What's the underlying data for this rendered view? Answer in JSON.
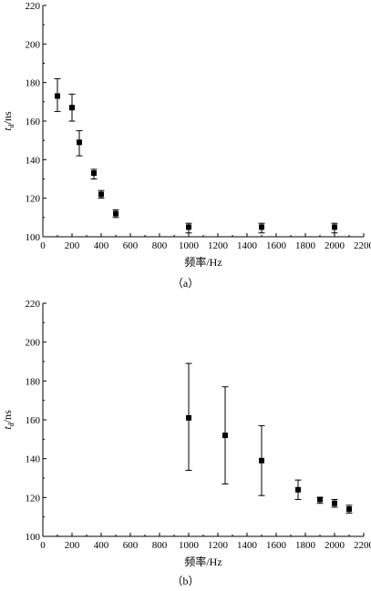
{
  "chart_data": [
    {
      "type": "scatter",
      "panel_label": "（a）",
      "xlabel": "频率/Hz",
      "ylabel_main": "t",
      "ylabel_sub": "d",
      "ylabel_unit": "/ns",
      "xlim": [
        0,
        2200
      ],
      "ylim": [
        100,
        220
      ],
      "xticks": [
        0,
        200,
        400,
        600,
        800,
        1000,
        1200,
        1400,
        1600,
        1800,
        2000,
        2200
      ],
      "yticks": [
        100,
        120,
        140,
        160,
        180,
        200,
        220
      ],
      "grid": false,
      "marker": "square",
      "points": [
        {
          "x": 100,
          "y": 173,
          "err_low": 165,
          "err_high": 182
        },
        {
          "x": 200,
          "y": 167,
          "err_low": 160,
          "err_high": 174
        },
        {
          "x": 250,
          "y": 149,
          "err_low": 142,
          "err_high": 155
        },
        {
          "x": 350,
          "y": 133,
          "err_low": 130,
          "err_high": 135
        },
        {
          "x": 400,
          "y": 122,
          "err_low": 120,
          "err_high": 124
        },
        {
          "x": 500,
          "y": 112,
          "err_low": 110,
          "err_high": 114
        },
        {
          "x": 1000,
          "y": 105,
          "err_low": 102,
          "err_high": 107
        },
        {
          "x": 1500,
          "y": 105,
          "err_low": 102,
          "err_high": 107
        },
        {
          "x": 2000,
          "y": 105,
          "err_low": 102,
          "err_high": 107
        }
      ]
    },
    {
      "type": "scatter",
      "panel_label": "（b）",
      "xlabel": "频率/Hz",
      "ylabel_main": "t",
      "ylabel_sub": "d",
      "ylabel_unit": "/ns",
      "xlim": [
        0,
        2200
      ],
      "ylim": [
        100,
        220
      ],
      "xticks": [
        0,
        200,
        400,
        600,
        800,
        1000,
        1200,
        1400,
        1600,
        1800,
        2000,
        2200
      ],
      "yticks": [
        100,
        120,
        140,
        160,
        180,
        200,
        220
      ],
      "grid": false,
      "marker": "square",
      "points": [
        {
          "x": 1000,
          "y": 161,
          "err_low": 134,
          "err_high": 189
        },
        {
          "x": 1250,
          "y": 152,
          "err_low": 127,
          "err_high": 177
        },
        {
          "x": 1500,
          "y": 139,
          "err_low": 121,
          "err_high": 157
        },
        {
          "x": 1750,
          "y": 124,
          "err_low": 119,
          "err_high": 129
        },
        {
          "x": 1900,
          "y": 119,
          "err_low": 117,
          "err_high": 120
        },
        {
          "x": 2000,
          "y": 117,
          "err_low": 115,
          "err_high": 119
        },
        {
          "x": 2100,
          "y": 114,
          "err_low": 112,
          "err_high": 116
        }
      ]
    }
  ]
}
